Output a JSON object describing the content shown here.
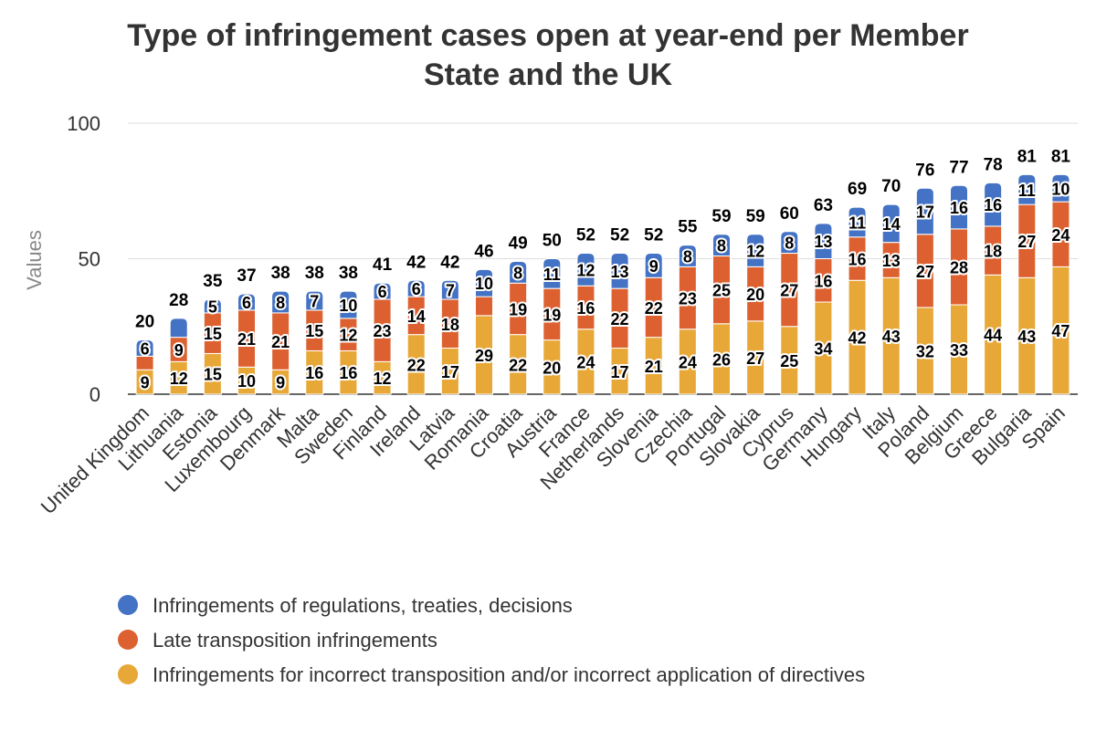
{
  "chart_data": {
    "type": "bar",
    "stacked": true,
    "title": "Type of infringement cases open at year-end per Member State and the UK",
    "ylabel": "Values",
    "ylim": [
      0,
      100
    ],
    "yticks": [
      0,
      50,
      100
    ],
    "grid": true,
    "legend_position": "bottom",
    "categories": [
      "United Kingdom",
      "Lithuania",
      "Estonia",
      "Luxembourg",
      "Denmark",
      "Malta",
      "Sweden",
      "Finland",
      "Ireland",
      "Latvia",
      "Romania",
      "Croatia",
      "Austria",
      "France",
      "Netherlands",
      "Slovenia",
      "Czechia",
      "Portugal",
      "Slovakia",
      "Cyprus",
      "Germany",
      "Hungary",
      "Italy",
      "Poland",
      "Belgium",
      "Greece",
      "Bulgaria",
      "Spain"
    ],
    "series": [
      {
        "name": "Infringements for incorrect transposition and/or incorrect application of directives",
        "color": "#E8A838",
        "values": [
          9,
          12,
          15,
          10,
          9,
          16,
          16,
          12,
          22,
          17,
          29,
          22,
          20,
          24,
          17,
          21,
          24,
          26,
          27,
          25,
          34,
          42,
          43,
          32,
          33,
          44,
          43,
          47
        ]
      },
      {
        "name": "Late transposition infringements",
        "color": "#DD6130",
        "values": [
          5,
          9,
          15,
          21,
          21,
          15,
          12,
          23,
          14,
          18,
          7,
          19,
          19,
          16,
          22,
          22,
          23,
          25,
          20,
          27,
          16,
          16,
          13,
          27,
          28,
          18,
          27,
          24
        ]
      },
      {
        "name": "Infringements of regulations, treaties, decisions",
        "color": "#4472C4",
        "values": [
          6,
          7,
          5,
          6,
          8,
          7,
          10,
          6,
          6,
          7,
          10,
          8,
          11,
          12,
          13,
          9,
          8,
          8,
          12,
          8,
          13,
          11,
          14,
          17,
          16,
          16,
          11,
          10
        ]
      }
    ],
    "totals": [
      20,
      28,
      35,
      37,
      38,
      38,
      38,
      41,
      42,
      42,
      46,
      49,
      50,
      52,
      52,
      52,
      55,
      59,
      59,
      60,
      63,
      69,
      70,
      76,
      77,
      78,
      81,
      81
    ],
    "segment_labels": [
      [
        "9",
        "12",
        "15",
        "10",
        "9",
        "16",
        "16",
        "12",
        "22",
        "17",
        "29",
        "22",
        "20",
        "24",
        "17",
        "21",
        "24",
        "26",
        "27",
        "25",
        "34",
        "42",
        "43",
        "32",
        "33",
        "44",
        "43",
        "47"
      ],
      [
        "",
        "9",
        "15",
        "21",
        "21",
        "15",
        "12",
        "23",
        "14",
        "18",
        "",
        "19",
        "19",
        "16",
        "22",
        "22",
        "23",
        "25",
        "20",
        "27",
        "16",
        "16",
        "13",
        "27",
        "28",
        "18",
        "27",
        "24"
      ],
      [
        "6",
        "",
        "5",
        "6",
        "8",
        "7",
        "10",
        "6",
        "6",
        "7",
        "10",
        "8",
        "11",
        "12",
        "13",
        "9",
        "8",
        "8",
        "12",
        "8",
        "13",
        "11",
        "14",
        "17",
        "16",
        "16",
        "11",
        "10"
      ]
    ]
  },
  "legend": [
    {
      "label": "Infringements of regulations, treaties, decisions",
      "color": "#4472C4"
    },
    {
      "label": "Late transposition infringements",
      "color": "#DD6130"
    },
    {
      "label": "Infringements for incorrect transposition and/or incorrect application of directives",
      "color": "#E8A838"
    }
  ]
}
